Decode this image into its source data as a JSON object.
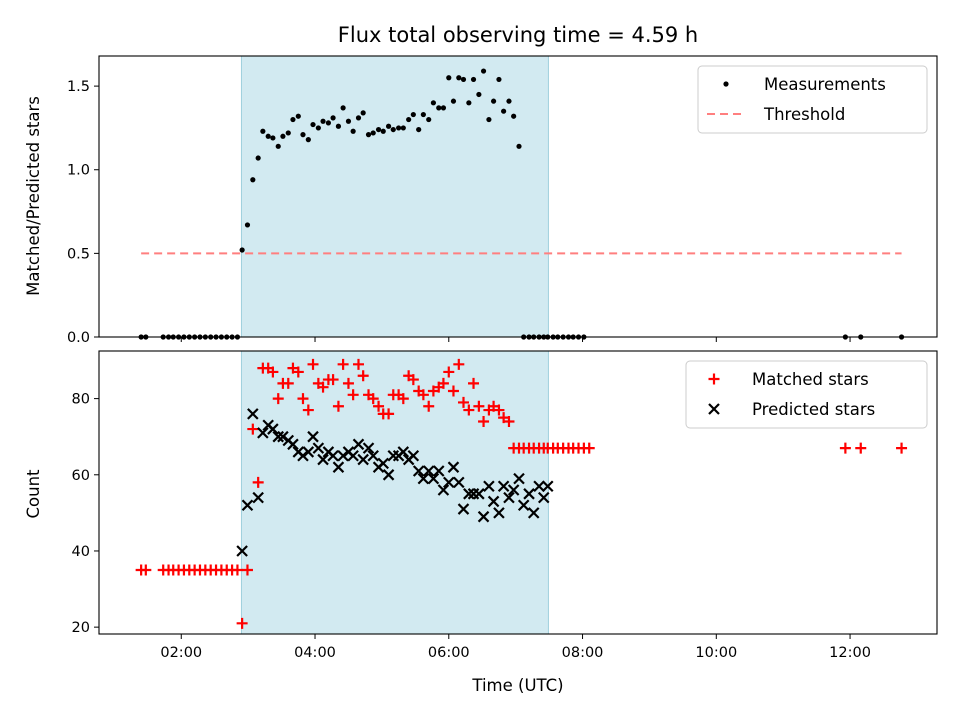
{
  "chart_data": {
    "title": "Flux total observing time = 4.59 h",
    "xlabel": "Time (UTC)",
    "xticks": [
      "02:00",
      "04:00",
      "06:00",
      "08:00",
      "10:00",
      "12:00"
    ],
    "xtick_hours": [
      2,
      4,
      6,
      8,
      10,
      12
    ],
    "xlim_hours": [
      0.77,
      13.3
    ],
    "highlight_span_hours": [
      2.9,
      7.49
    ],
    "highlight_color": "#add8e6",
    "panels": [
      {
        "type": "scatter",
        "ylabel": "Matched/Predicted stars",
        "ylim": [
          0,
          1.68
        ],
        "yticks": [
          "0.0",
          "0.5",
          "1.0",
          "1.5"
        ],
        "ytick_values": [
          0,
          0.5,
          1.0,
          1.5
        ],
        "legend_position": "top-right",
        "series": [
          {
            "name": "Measurements",
            "marker": "dot",
            "color": "#000000",
            "x": [
              1.4,
              1.47,
              1.73,
              1.81,
              1.88,
              1.96,
              2.04,
              2.12,
              2.2,
              2.28,
              2.36,
              2.44,
              2.52,
              2.6,
              2.68,
              2.76,
              2.84,
              2.91,
              2.99,
              3.07,
              3.15,
              3.22,
              3.3,
              3.37,
              3.45,
              3.52,
              3.6,
              3.67,
              3.75,
              3.82,
              3.9,
              3.97,
              4.05,
              4.12,
              4.2,
              4.27,
              4.35,
              4.42,
              4.5,
              4.57,
              4.65,
              4.72,
              4.8,
              4.87,
              4.95,
              5.02,
              5.1,
              5.17,
              5.25,
              5.32,
              5.4,
              5.47,
              5.55,
              5.62,
              5.7,
              5.77,
              5.85,
              5.92,
              6.0,
              6.07,
              6.15,
              6.22,
              6.3,
              6.37,
              6.45,
              6.52,
              6.6,
              6.67,
              6.75,
              6.82,
              6.9,
              6.97,
              7.05,
              7.12,
              7.2,
              7.27,
              7.35,
              7.42,
              7.48,
              7.56,
              7.63,
              7.71,
              7.79,
              7.86,
              7.94,
              8.02,
              11.93,
              12.16,
              12.77
            ],
            "y": [
              0,
              0,
              0,
              0,
              0,
              0,
              0,
              0,
              0,
              0,
              0,
              0,
              0,
              0,
              0,
              0,
              0,
              0.52,
              0.67,
              0.94,
              1.07,
              1.23,
              1.2,
              1.19,
              1.14,
              1.2,
              1.22,
              1.3,
              1.32,
              1.21,
              1.18,
              1.27,
              1.25,
              1.29,
              1.28,
              1.31,
              1.26,
              1.37,
              1.29,
              1.23,
              1.31,
              1.34,
              1.21,
              1.22,
              1.24,
              1.23,
              1.26,
              1.24,
              1.25,
              1.25,
              1.3,
              1.33,
              1.24,
              1.33,
              1.3,
              1.4,
              1.37,
              1.37,
              1.55,
              1.41,
              1.55,
              1.54,
              1.4,
              1.54,
              1.45,
              1.59,
              1.3,
              1.41,
              1.54,
              1.35,
              1.41,
              1.32,
              1.14,
              0,
              0,
              0,
              0,
              0,
              0,
              0,
              0,
              0,
              0,
              0,
              0,
              0,
              0,
              0,
              0
            ],
            "note": "x values of this series are paired with y by index"
          },
          {
            "name": "Threshold",
            "marker": "dashed-line",
            "color": "#ff7f7f",
            "x": [
              1.4,
              12.77
            ],
            "y": [
              0.5,
              0.5
            ]
          }
        ]
      },
      {
        "type": "scatter",
        "ylabel": "Count",
        "ylim": [
          18.2,
          92.5
        ],
        "yticks": [
          "20",
          "40",
          "60",
          "80"
        ],
        "ytick_values": [
          20,
          40,
          60,
          80
        ],
        "legend_position": "top-right",
        "series": [
          {
            "name": "Matched stars",
            "marker": "plus",
            "color": "#ff0000",
            "x": [
              1.4,
              1.47,
              1.73,
              1.81,
              1.88,
              1.96,
              2.04,
              2.12,
              2.2,
              2.28,
              2.36,
              2.44,
              2.52,
              2.6,
              2.68,
              2.76,
              2.84,
              2.91,
              2.99,
              3.07,
              3.15,
              3.22,
              3.3,
              3.37,
              3.45,
              3.52,
              3.6,
              3.67,
              3.75,
              3.82,
              3.9,
              3.97,
              4.05,
              4.12,
              4.2,
              4.27,
              4.35,
              4.42,
              4.5,
              4.57,
              4.65,
              4.72,
              4.8,
              4.87,
              4.95,
              5.02,
              5.1,
              5.17,
              5.25,
              5.32,
              5.4,
              5.47,
              5.55,
              5.62,
              5.7,
              5.77,
              5.85,
              5.92,
              6.0,
              6.07,
              6.15,
              6.22,
              6.3,
              6.37,
              6.45,
              6.52,
              6.6,
              6.67,
              6.75,
              6.82,
              6.9,
              6.97,
              7.05,
              7.12,
              7.2,
              7.27,
              7.35,
              7.42,
              7.48,
              7.56,
              7.63,
              7.71,
              7.79,
              7.86,
              7.94,
              8.02,
              8.1,
              11.93,
              12.16,
              12.77
            ],
            "y": [
              35,
              35,
              35,
              35,
              35,
              35,
              35,
              35,
              35,
              35,
              35,
              35,
              35,
              35,
              35,
              35,
              35,
              21,
              35,
              72,
              58,
              88,
              88,
              87,
              80,
              84,
              84,
              88,
              87,
              80,
              77,
              89,
              84,
              83,
              85,
              85,
              78,
              89,
              84,
              81,
              89,
              86,
              81,
              80,
              78,
              76,
              76,
              81,
              81,
              80,
              86,
              85,
              82,
              81,
              78,
              82,
              83,
              84,
              87,
              82,
              89,
              79,
              77,
              84,
              78,
              74,
              77,
              78,
              77,
              75,
              74,
              67,
              67,
              67,
              67,
              67,
              67,
              67,
              67,
              67,
              67,
              67,
              67,
              67,
              67,
              67,
              67,
              67,
              67,
              67
            ],
            "note": "x values of this series are paired with y by index"
          },
          {
            "name": "Predicted stars",
            "marker": "x",
            "color": "#000000",
            "x": [
              2.91,
              2.99,
              3.07,
              3.15,
              3.22,
              3.3,
              3.37,
              3.45,
              3.52,
              3.6,
              3.67,
              3.75,
              3.82,
              3.9,
              3.97,
              4.05,
              4.12,
              4.2,
              4.27,
              4.35,
              4.42,
              4.5,
              4.57,
              4.65,
              4.72,
              4.8,
              4.87,
              4.95,
              5.02,
              5.1,
              5.17,
              5.25,
              5.32,
              5.4,
              5.47,
              5.55,
              5.62,
              5.7,
              5.77,
              5.85,
              5.92,
              6.0,
              6.07,
              6.15,
              6.22,
              6.3,
              6.37,
              6.45,
              6.52,
              6.6,
              6.67,
              6.75,
              6.82,
              6.9,
              6.97,
              7.05,
              7.12,
              7.2,
              7.27,
              7.35,
              7.42,
              7.48
            ],
            "y": [
              40,
              52,
              76,
              54,
              71,
              73,
              72,
              70,
              70,
              69,
              68,
              66,
              65,
              66,
              70,
              67,
              64,
              66,
              65,
              62,
              65,
              66,
              65,
              68,
              64,
              67,
              65,
              62,
              63,
              60,
              65,
              65,
              66,
              64,
              65,
              61,
              59,
              61,
              59,
              61,
              56,
              58,
              62,
              58,
              51,
              55,
              55,
              55,
              49,
              57,
              53,
              50,
              57,
              54,
              56,
              59,
              52,
              55,
              50,
              57,
              54,
              57
            ],
            "note": "x values of this series are paired with y by index"
          }
        ]
      }
    ]
  }
}
